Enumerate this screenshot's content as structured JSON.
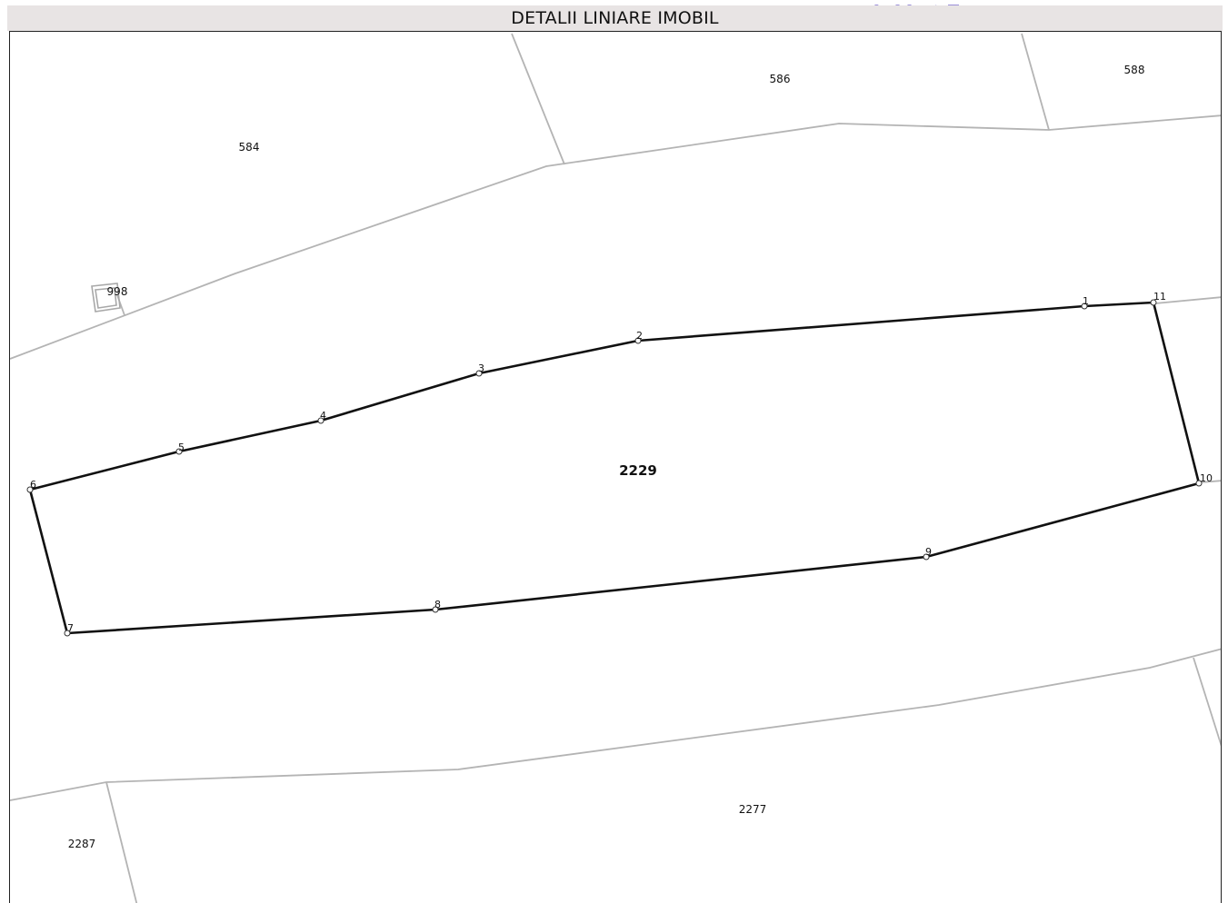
{
  "title": "DETALII LINIARE IMOBIL",
  "parcel": {
    "id": "2229",
    "vertices": [
      "1",
      "2",
      "3",
      "4",
      "5",
      "6",
      "7",
      "8",
      "9",
      "10",
      "11"
    ]
  },
  "neighbors": [
    "584",
    "586",
    "588",
    "998",
    "2277",
    "2287"
  ],
  "colors": {
    "parcel_outline": "#111111",
    "neighbor_lines": "#b4b4b4",
    "title_bar_bg": "#e8e4e4",
    "frame": "#222222",
    "watermark": "#9a8fd8"
  }
}
